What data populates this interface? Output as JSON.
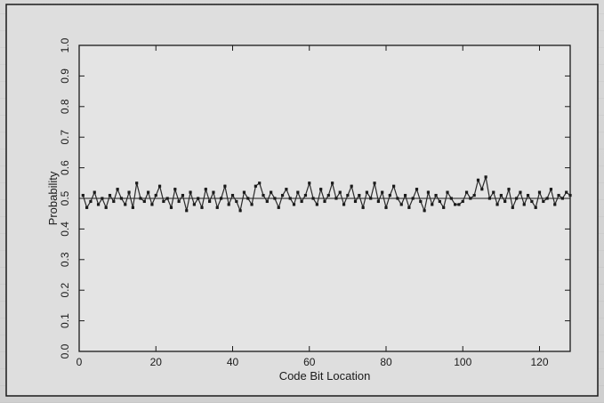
{
  "chart_data": {
    "type": "line",
    "title": "",
    "xlabel": "Code Bit Location",
    "ylabel": "Probability",
    "xlim": [
      0,
      128
    ],
    "ylim": [
      0.0,
      1.0
    ],
    "x_ticks": [
      0,
      20,
      40,
      60,
      80,
      100,
      120
    ],
    "y_ticks": [
      0.0,
      0.1,
      0.2,
      0.3,
      0.4,
      0.5,
      0.6,
      0.7,
      0.8,
      0.9,
      1.0
    ],
    "y_tick_labels": [
      "0.0",
      "0.1",
      "0.2",
      "0.3",
      "0.4",
      "0.5",
      "0.6",
      "0.7",
      "0.8",
      "0.9",
      "1.0"
    ],
    "grid": false,
    "series": [
      {
        "name": "",
        "markers": true,
        "x": [
          1,
          2,
          3,
          4,
          5,
          6,
          7,
          8,
          9,
          10,
          11,
          12,
          13,
          14,
          15,
          16,
          17,
          18,
          19,
          20,
          21,
          22,
          23,
          24,
          25,
          26,
          27,
          28,
          29,
          30,
          31,
          32,
          33,
          34,
          35,
          36,
          37,
          38,
          39,
          40,
          41,
          42,
          43,
          44,
          45,
          46,
          47,
          48,
          49,
          50,
          51,
          52,
          53,
          54,
          55,
          56,
          57,
          58,
          59,
          60,
          61,
          62,
          63,
          64,
          65,
          66,
          67,
          68,
          69,
          70,
          71,
          72,
          73,
          74,
          75,
          76,
          77,
          78,
          79,
          80,
          81,
          82,
          83,
          84,
          85,
          86,
          87,
          88,
          89,
          90,
          91,
          92,
          93,
          94,
          95,
          96,
          97,
          98,
          99,
          100,
          101,
          102,
          103,
          104,
          105,
          106,
          107,
          108,
          109,
          110,
          111,
          112,
          113,
          114,
          115,
          116,
          117,
          118,
          119,
          120,
          121,
          122,
          123,
          124,
          125,
          126,
          127,
          128
        ],
        "values": [
          0.51,
          0.47,
          0.49,
          0.52,
          0.48,
          0.5,
          0.47,
          0.51,
          0.49,
          0.53,
          0.5,
          0.48,
          0.52,
          0.47,
          0.55,
          0.5,
          0.49,
          0.52,
          0.48,
          0.51,
          0.54,
          0.49,
          0.5,
          0.47,
          0.53,
          0.49,
          0.51,
          0.46,
          0.52,
          0.48,
          0.5,
          0.47,
          0.53,
          0.49,
          0.52,
          0.47,
          0.5,
          0.54,
          0.48,
          0.51,
          0.49,
          0.46,
          0.52,
          0.5,
          0.48,
          0.54,
          0.55,
          0.51,
          0.49,
          0.52,
          0.5,
          0.47,
          0.51,
          0.53,
          0.5,
          0.48,
          0.52,
          0.49,
          0.51,
          0.55,
          0.5,
          0.48,
          0.53,
          0.49,
          0.51,
          0.55,
          0.5,
          0.52,
          0.48,
          0.51,
          0.54,
          0.49,
          0.51,
          0.47,
          0.52,
          0.5,
          0.55,
          0.49,
          0.52,
          0.47,
          0.51,
          0.54,
          0.5,
          0.48,
          0.51,
          0.47,
          0.5,
          0.53,
          0.49,
          0.46,
          0.52,
          0.48,
          0.51,
          0.49,
          0.47,
          0.52,
          0.5,
          0.48,
          0.48,
          0.49,
          0.52,
          0.5,
          0.51,
          0.56,
          0.53,
          0.57,
          0.5,
          0.52,
          0.48,
          0.51,
          0.49,
          0.53,
          0.47,
          0.5,
          0.52,
          0.48,
          0.51,
          0.49,
          0.47,
          0.52,
          0.49,
          0.5,
          0.53,
          0.48,
          0.51,
          0.5,
          0.52,
          0.51
        ]
      }
    ],
    "reference_line": {
      "y": 0.5
    }
  }
}
